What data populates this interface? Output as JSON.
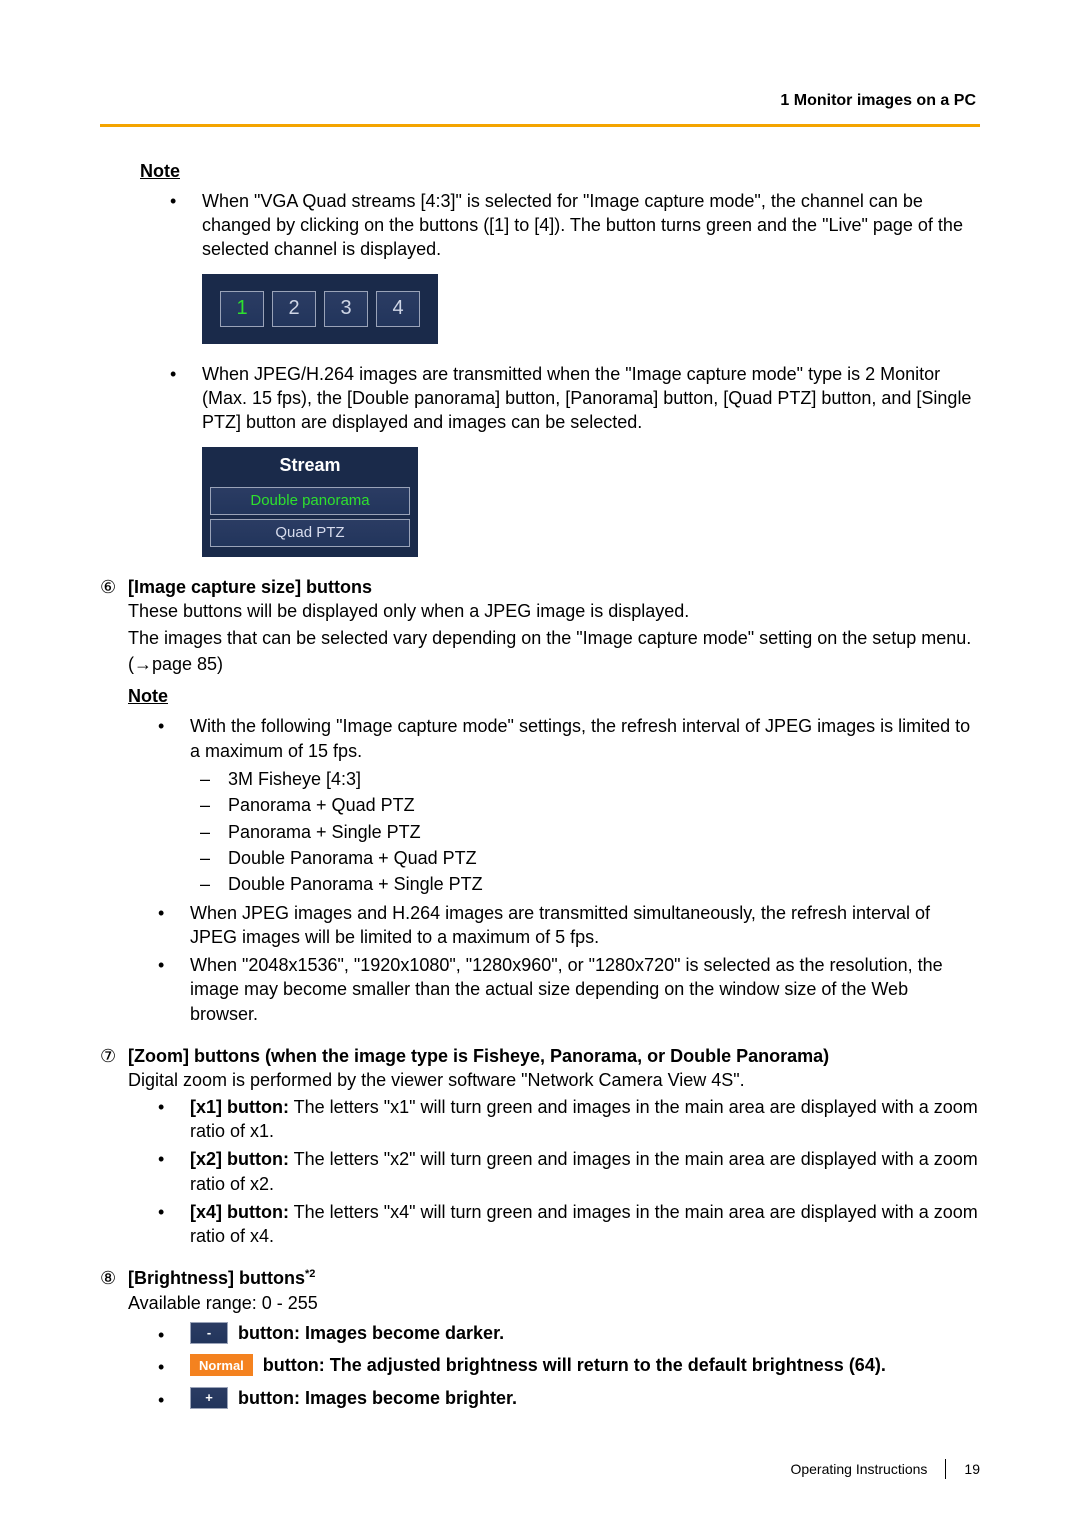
{
  "header": {
    "chapter": "1 Monitor images on a PC"
  },
  "note1": {
    "heading": "Note",
    "bullet1": "When \"VGA Quad streams [4:3]\" is selected for \"Image capture mode\", the channel can be changed by clicking on the buttons ([1] to [4]). The button turns green and the \"Live\" page of the selected channel is displayed.",
    "chan": {
      "b1": "1",
      "b2": "2",
      "b3": "3",
      "b4": "4",
      "panel_bg": "#1a2a4a",
      "btn_bg_top": "#2b3c63",
      "btn_bg_bot": "#22355c",
      "active_color": "#2ee02e",
      "inactive_color": "#cfd6e6"
    },
    "bullet2": "When JPEG/H.264 images are transmitted when the \"Image capture mode\" type is 2 Monitor (Max. 15 fps), the [Double panorama] button, [Panorama] button, [Quad PTZ] button, and [Single PTZ] button are displayed and images can be selected.",
    "stream": {
      "title": "Stream",
      "btn1": "Double panorama",
      "btn2": "Quad PTZ",
      "title_color": "#ffffff",
      "active_color": "#2ee02e"
    }
  },
  "section6": {
    "marker": "⑥",
    "title": "[Image capture size] buttons",
    "p1": "These buttons will be displayed only when a JPEG image is displayed.",
    "p2": "The images that can be selected vary depending on the \"Image capture mode\" setting on the setup menu.",
    "p3": "(→page 85)",
    "note_heading": "Note",
    "nb1": "With the following \"Image capture mode\" settings, the refresh interval of JPEG images is limited to a maximum of 15 fps.",
    "modes": {
      "m1": "3M Fisheye [4:3]",
      "m2": "Panorama + Quad PTZ",
      "m3": "Panorama + Single PTZ",
      "m4": "Double Panorama + Quad PTZ",
      "m5": "Double Panorama + Single PTZ"
    },
    "nb2": "When JPEG images and H.264 images are transmitted simultaneously, the refresh interval of JPEG images will be limited to a maximum of 5 fps.",
    "nb3": "When \"2048x1536\", \"1920x1080\", \"1280x960\", or \"1280x720\" is selected as the resolution, the image may become smaller than the actual size depending on the window size of the Web browser."
  },
  "section7": {
    "marker": "⑦",
    "title": "[Zoom] buttons (when the image type is Fisheye, Panorama, or Double Panorama)",
    "p1": "Digital zoom is performed by the viewer software \"Network Camera View 4S\".",
    "items": {
      "x1_label": "[x1] button:",
      "x1_text": " The letters \"x1\" will turn green and images in the main area are displayed with a zoom ratio of x1.",
      "x2_label": "[x2] button:",
      "x2_text": " The letters \"x2\" will turn green and images in the main area are displayed with a zoom ratio of x2.",
      "x4_label": "[x4] button:",
      "x4_text": " The letters \"x4\" will turn green and images in the main area are displayed with a zoom ratio of x4."
    }
  },
  "section8": {
    "marker": "⑧",
    "title_main": "[Brightness] buttons",
    "title_sup": "*2",
    "p1": "Available range: 0 - 255",
    "minus_label": "-",
    "minus_text": "button: Images become darker.",
    "normal_label": "Normal",
    "normal_text": "button: The adjusted brightness will return to the default brightness (64).",
    "plus_label": "+",
    "plus_text": "button: Images become brighter.",
    "colors": {
      "pill_bg_top": "#2b3c63",
      "pill_bg_bot": "#22355c",
      "normal_bg": "#f4821f"
    }
  },
  "footer": {
    "doc": "Operating Instructions",
    "page": "19"
  },
  "theme": {
    "accent": "#f4a400",
    "text": "#000000",
    "bg": "#ffffff"
  }
}
